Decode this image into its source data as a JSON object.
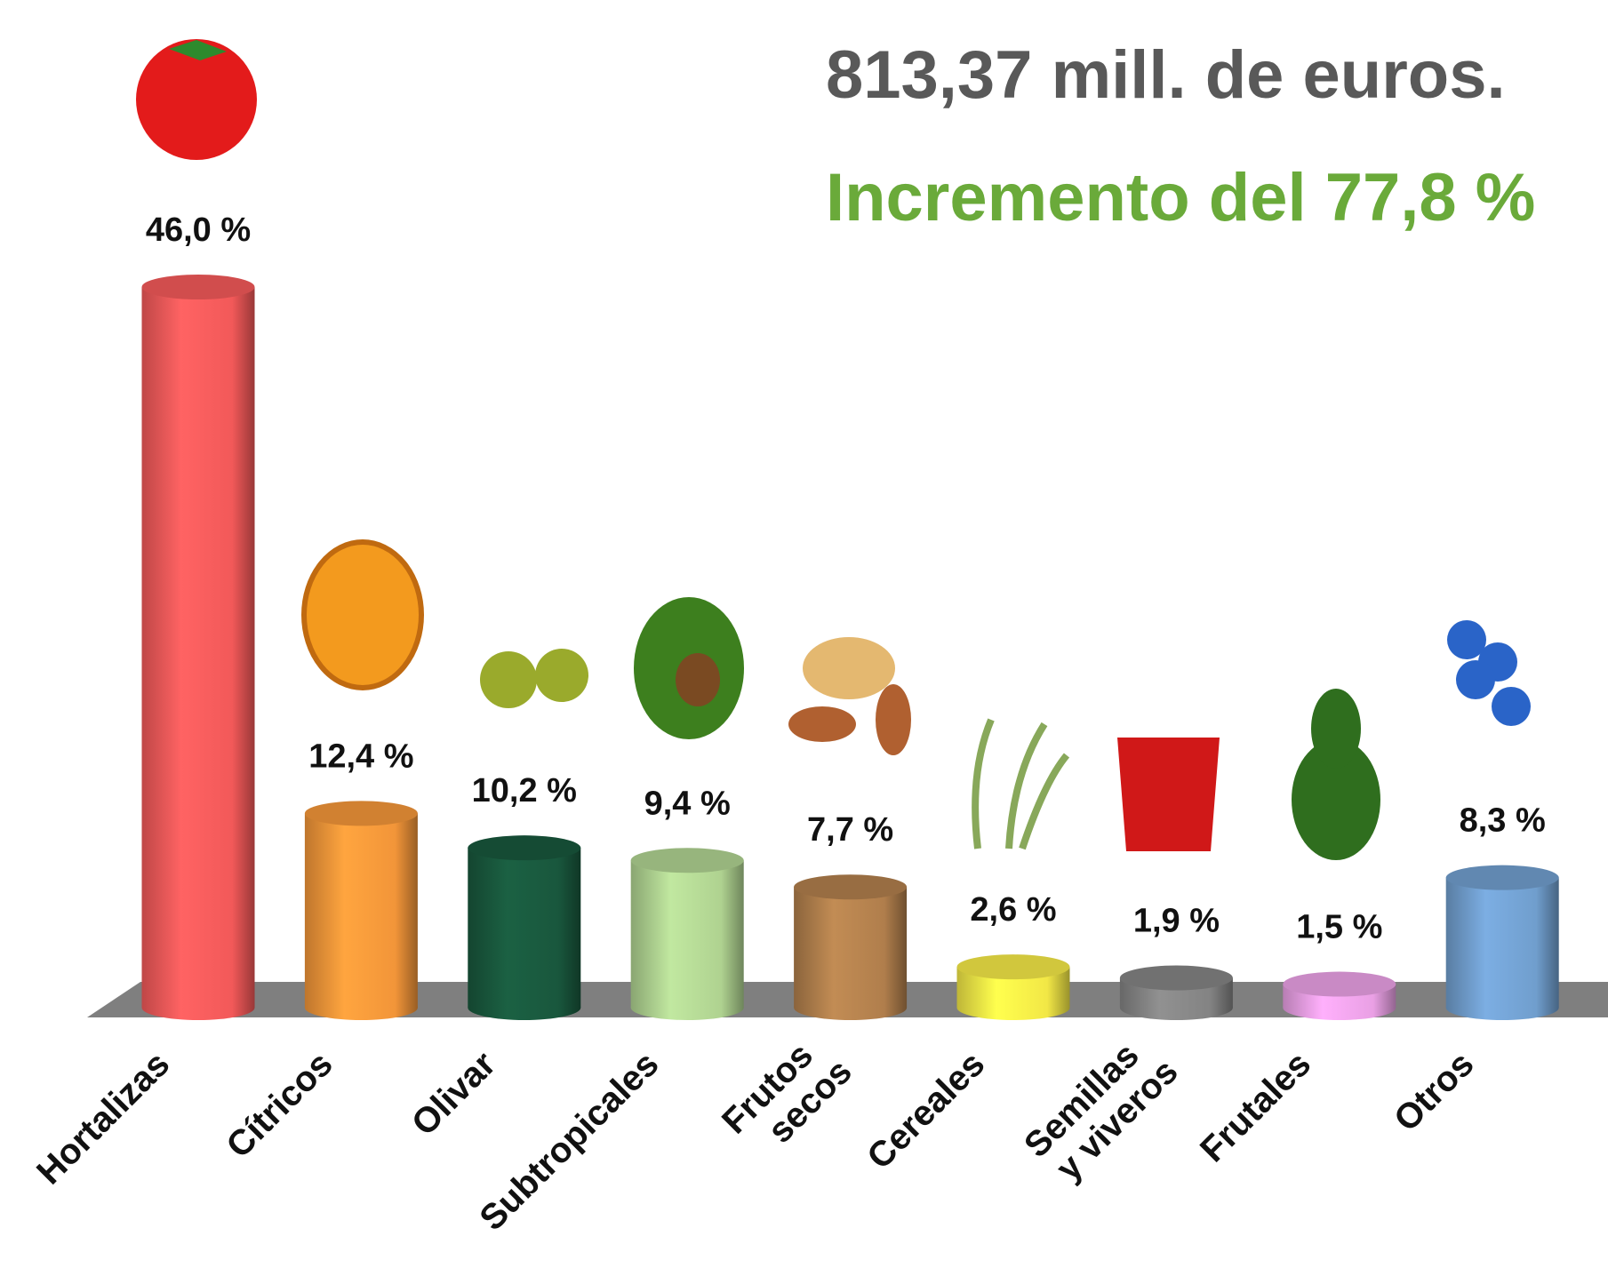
{
  "chart_data": {
    "type": "bar",
    "title": "813,37 mill. de euros.",
    "subtitle": "Incremento del 77,8 %",
    "categories": [
      "Hortalizas",
      "Cítricos",
      "Olivar",
      "Subtropicales",
      "Frutos\nsecos",
      "Cereales",
      "Semillas\ny viveros",
      "Frutales",
      "Otros"
    ],
    "values": [
      46.0,
      12.4,
      10.2,
      9.4,
      7.7,
      2.6,
      1.9,
      1.5,
      8.3
    ],
    "value_labels": [
      "46,0 %",
      "12,4 %",
      "10,2 %",
      "9,4 %",
      "7,7 %",
      "2,6 %",
      "1,9 %",
      "1,5 %",
      "8,3 %"
    ],
    "colors": [
      "#ff5e5e",
      "#ff9d3c",
      "#1a5c40",
      "#b8dd98",
      "#b98550",
      "#fff34a",
      "#8a8a8a",
      "#f5a8f0",
      "#76a6d8"
    ]
  }
}
